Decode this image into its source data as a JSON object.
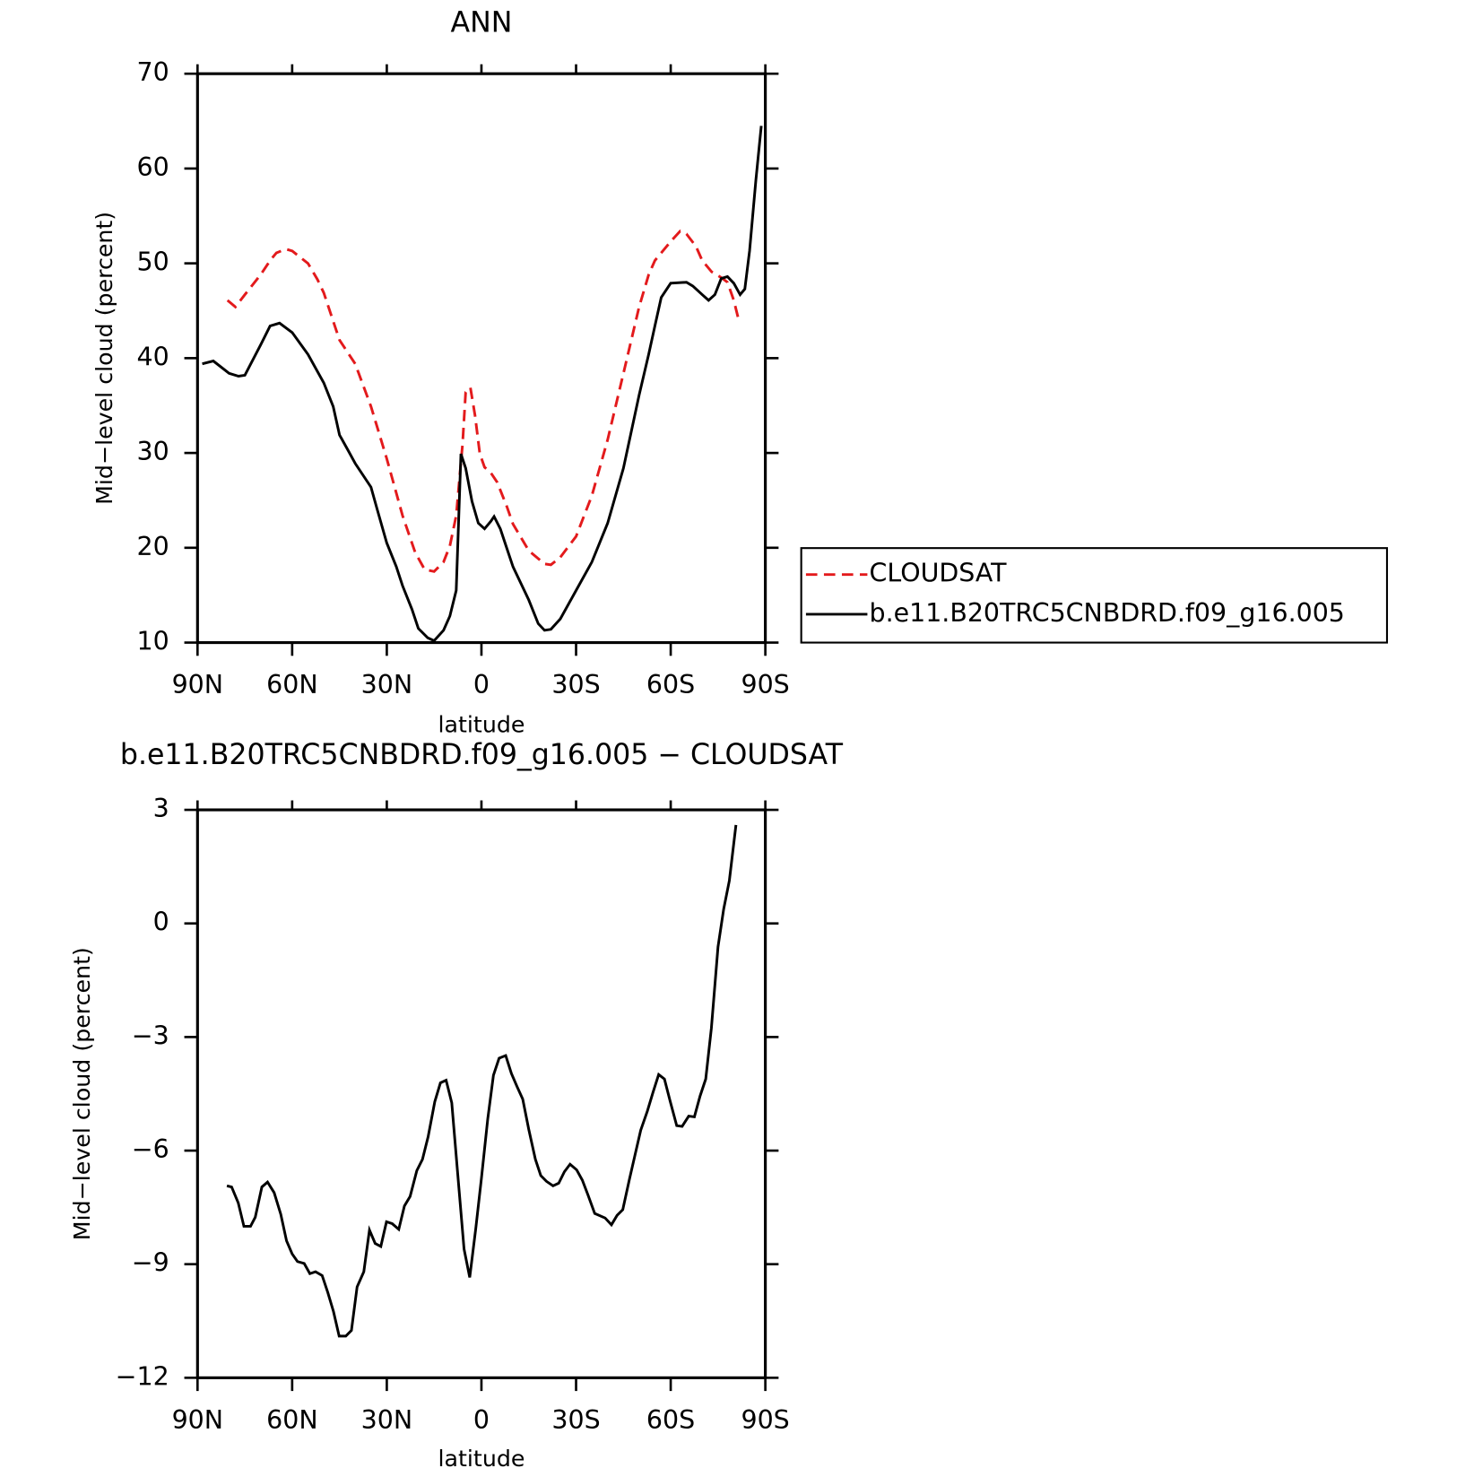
{
  "chart_data": [
    {
      "type": "line",
      "title": "ANN",
      "xlabel": "latitude",
      "ylabel": "Mid−level cloud (percent)",
      "xlim": [
        90,
        -90
      ],
      "xticks": [
        {
          "value": 90,
          "label": "90N"
        },
        {
          "value": 60,
          "label": "60N"
        },
        {
          "value": 30,
          "label": "30N"
        },
        0,
        {
          "value": -30,
          "label": "30S"
        },
        {
          "value": -60,
          "label": "60S"
        },
        {
          "value": -90,
          "label": "90S"
        }
      ],
      "ylim": [
        10,
        70
      ],
      "yticks": [
        10,
        20,
        30,
        40,
        50,
        60,
        70
      ],
      "legend": "right",
      "series": [
        {
          "name": "CLOUDSAT",
          "color": "#e31a1c",
          "linestyle": "dashed",
          "x": [
            80.5,
            78,
            75,
            70,
            67,
            65,
            62,
            60,
            55,
            52,
            50,
            47,
            45,
            40,
            35,
            30,
            25,
            21,
            18,
            15,
            12,
            10,
            8,
            6,
            5,
            3.5,
            2,
            0.5,
            -1,
            -3,
            -5,
            -8,
            -10,
            -15,
            -20,
            -22,
            -25,
            -30,
            -35,
            -40,
            -45,
            -50,
            -53,
            -55,
            -60,
            -63,
            -65,
            -68,
            -70,
            -73,
            -76,
            -78,
            -80,
            -81.5
          ],
          "values": [
            46.1,
            45.4,
            46.7,
            48.8,
            50.3,
            51.1,
            51.5,
            51.3,
            50,
            48.3,
            46.9,
            43.9,
            41.9,
            39.4,
            34.9,
            29.4,
            23.4,
            19.5,
            17.7,
            17.5,
            18.5,
            20.2,
            23.4,
            30.9,
            36.4,
            36.9,
            33.9,
            29.9,
            28.5,
            27.9,
            26.9,
            24.4,
            22.5,
            19.7,
            18.3,
            18.2,
            19,
            21.2,
            25.5,
            31.4,
            38.4,
            45.4,
            48.8,
            50.3,
            52.3,
            53.4,
            53.1,
            51.8,
            50.3,
            49.1,
            48.5,
            48,
            46.1,
            44.1
          ]
        },
        {
          "name": "b.e11.B20TRC5CNBDRD.f09_g16.005",
          "color": "#000000",
          "linestyle": "solid",
          "x": [
            88.5,
            85,
            80,
            77,
            75,
            70,
            67,
            64,
            60,
            55,
            50,
            47,
            45,
            42,
            40,
            35,
            33,
            30,
            27,
            25,
            22,
            20,
            17,
            15,
            12,
            10,
            8,
            6.5,
            5,
            3,
            1,
            -1,
            -3,
            -4,
            -6,
            -8,
            -10,
            -15,
            -18,
            -20,
            -22,
            -25,
            -30,
            -35,
            -40,
            -45,
            -50,
            -53,
            -55,
            -57,
            -60,
            -65,
            -67,
            -70,
            -72,
            -74,
            -76,
            -78,
            -80,
            -82,
            -83.5,
            -85,
            -87,
            -88.7
          ],
          "values": [
            39.4,
            39.7,
            38.4,
            38.1,
            38.2,
            41.4,
            43.4,
            43.7,
            42.7,
            40.4,
            37.4,
            34.9,
            31.9,
            30.1,
            28.9,
            26.4,
            24,
            20.5,
            18,
            16,
            13.5,
            11.5,
            10.5,
            10.2,
            11.3,
            12.8,
            15.5,
            29.9,
            28.4,
            24.9,
            22.6,
            22,
            22.8,
            23.3,
            22,
            20,
            18,
            14.5,
            12,
            11.3,
            11.4,
            12.5,
            15.5,
            18.5,
            22.6,
            28.4,
            36.1,
            40.4,
            43.4,
            46.4,
            47.9,
            48,
            47.6,
            46.7,
            46.1,
            46.7,
            48.4,
            48.6,
            47.9,
            46.7,
            47.3,
            51.3,
            58.8,
            64.5
          ]
        }
      ]
    },
    {
      "type": "line",
      "title": "b.e11.B20TRC5CNBDRD.f09_g16.005 − CLOUDSAT",
      "xlabel": "latitude",
      "ylabel": "Mid−level cloud (percent)",
      "xlim": [
        90,
        -90
      ],
      "xticks": [
        {
          "value": 90,
          "label": "90N"
        },
        {
          "value": 60,
          "label": "60N"
        },
        {
          "value": 30,
          "label": "30N"
        },
        0,
        {
          "value": -30,
          "label": "30S"
        },
        {
          "value": -60,
          "label": "60S"
        },
        {
          "value": -90,
          "label": "90S"
        }
      ],
      "ylim": [
        -12,
        3
      ],
      "yticks": [
        3,
        0,
        {
          "value": -3,
          "label": "−3"
        },
        {
          "value": -6,
          "label": "−6"
        },
        {
          "value": -9,
          "label": "−9"
        },
        {
          "value": -12,
          "label": "−12"
        }
      ],
      "series": [
        {
          "color": "#000000",
          "linestyle": "solid",
          "x": [
            80.7,
            79.2,
            77.1,
            75.3,
            73.2,
            71.7,
            69.6,
            67.8,
            65.7,
            63.6,
            61.8,
            60,
            58.3,
            56.2,
            54.4,
            52.6,
            50.5,
            48.7,
            46.9,
            45.1,
            43,
            41.2,
            39.4,
            37.3,
            35.5,
            33.7,
            31.9,
            30.1,
            28.3,
            26.2,
            24.4,
            22.6,
            20.5,
            18.7,
            16.9,
            14.8,
            13,
            11.2,
            9.4,
            7.6,
            5.5,
            3.7,
            1.8,
            0,
            -2,
            -3.8,
            -5.6,
            -7.7,
            -9.5,
            -11.3,
            -13.1,
            -15,
            -17.1,
            -18.8,
            -20.6,
            -22.7,
            -24.5,
            -26.3,
            -28.1,
            -30.2,
            -32,
            -33.8,
            -35.9,
            -39.2,
            -41.2,
            -43,
            -44.8,
            -46.9,
            -48.7,
            -50.5,
            -52.6,
            -54.4,
            -56.2,
            -58,
            -59.8,
            -61.9,
            -63.6,
            -65.7,
            -67.5,
            -69.3,
            -71.1,
            -72.9,
            -75,
            -76.8,
            -78.6,
            -80.7
          ],
          "values": [
            -6.93,
            -6.96,
            -7.38,
            -8,
            -8,
            -7.76,
            -6.96,
            -6.83,
            -7.11,
            -7.68,
            -8.38,
            -8.73,
            -8.93,
            -8.98,
            -9.25,
            -9.2,
            -9.3,
            -9.75,
            -10.25,
            -10.9,
            -10.9,
            -10.75,
            -9.6,
            -9.2,
            -8.1,
            -8.45,
            -8.53,
            -7.88,
            -7.93,
            -8.08,
            -7.46,
            -7.21,
            -6.53,
            -6.23,
            -5.63,
            -4.71,
            -4.21,
            -4.14,
            -4.74,
            -6.53,
            -8.6,
            -9.35,
            -8.06,
            -6.73,
            -5.16,
            -4.01,
            -3.56,
            -3.49,
            -3.96,
            -4.31,
            -4.64,
            -5.44,
            -6.23,
            -6.66,
            -6.81,
            -6.93,
            -6.86,
            -6.56,
            -6.36,
            -6.51,
            -6.78,
            -7.18,
            -7.66,
            -7.78,
            -7.96,
            -7.71,
            -7.56,
            -6.76,
            -6.11,
            -5.46,
            -4.96,
            -4.46,
            -3.99,
            -4.11,
            -4.69,
            -5.34,
            -5.36,
            -5.09,
            -5.11,
            -4.56,
            -4.11,
            -2.76,
            -0.62,
            0.38,
            1.13,
            2.6
          ]
        }
      ]
    }
  ]
}
